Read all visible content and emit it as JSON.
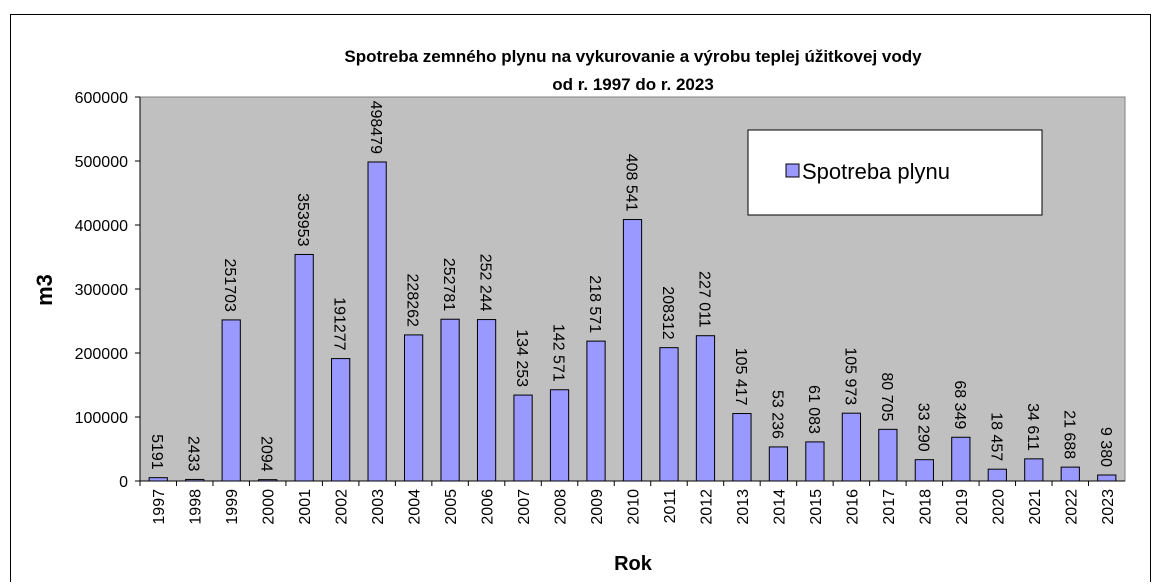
{
  "chart_data": {
    "type": "bar",
    "title": "Spotreba zemného plynu na vykurovanie a výrobu teplej úžitkovej vody",
    "subtitle": "od r. 1997 do r.  2023",
    "x_label": "Rok",
    "y_label": "m3",
    "categories": [
      "1997",
      "1998",
      "1999",
      "2000",
      "2001",
      "2002",
      "2003",
      "2004",
      "2005",
      "2006",
      "2007",
      "2008",
      "2009",
      "2010",
      "2011",
      "2012",
      "2013",
      "2014",
      "2015",
      "2016",
      "2017",
      "2018",
      "2019",
      "2020",
      "2021",
      "2022",
      "2023"
    ],
    "series": [
      {
        "name": "Spotreba plynu",
        "color": "#9999ff",
        "values": [
          5191,
          2433,
          251703,
          2094,
          353953,
          191277,
          498479,
          228262,
          252781,
          252244,
          134253,
          142571,
          218571,
          408541,
          208312,
          227011,
          105417,
          53236,
          61083,
          105973,
          80705,
          33290,
          68349,
          18457,
          34611,
          21688,
          9380
        ],
        "value_labels": [
          "5191",
          "2433",
          "251703",
          "2094",
          "353953",
          "191277",
          "498479",
          "228262",
          "252781",
          "252 244",
          "134 253",
          "142 571",
          "218 571",
          "408 541",
          "208312",
          "227 011",
          "105 417",
          "53 236",
          "61 083",
          "105 973",
          "80 705",
          "33 290",
          "68 349",
          "18 457",
          "34 611",
          "21 688",
          "9 380"
        ]
      }
    ],
    "ylim": [
      0,
      600000
    ],
    "yticks": [
      0,
      100000,
      200000,
      300000,
      400000,
      500000,
      600000
    ],
    "grid": false,
    "legend": "upper right",
    "plot_background": "#c0c0c0"
  }
}
